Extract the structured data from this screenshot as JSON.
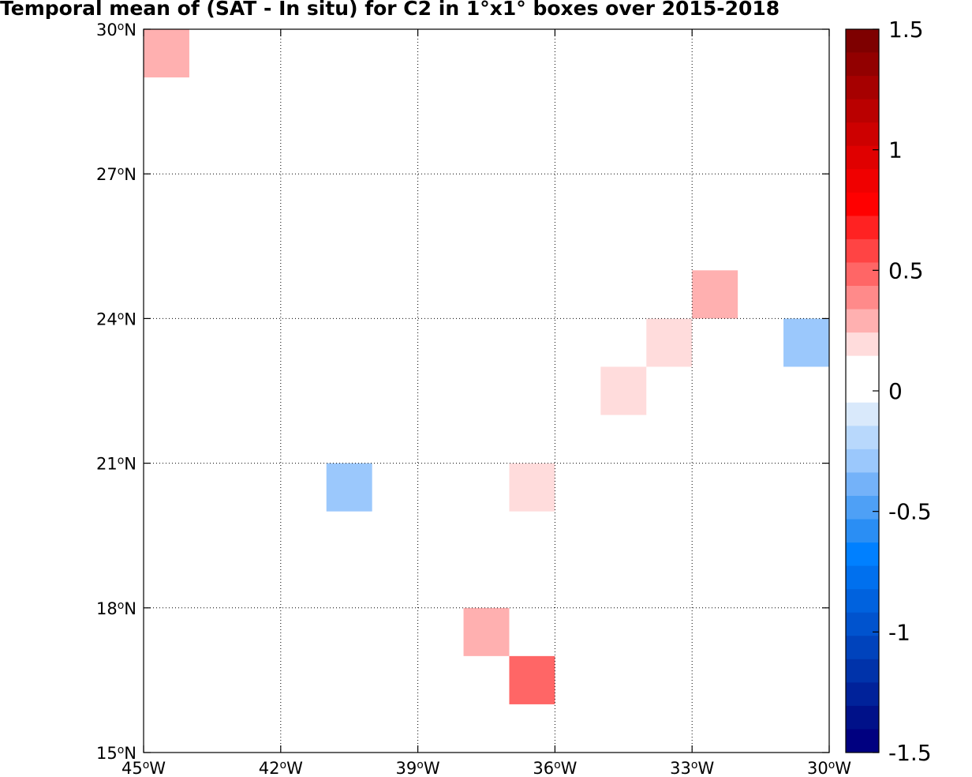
{
  "chart_data": {
    "type": "heatmap",
    "title": "Temporal mean of (SAT - In situ) for C2 in 1°x1° boxes over 2015-2018",
    "xlim": [
      -45,
      -30
    ],
    "ylim": [
      15,
      30
    ],
    "x_ticks": [
      {
        "value": -45,
        "deg": "45",
        "hemi": "W"
      },
      {
        "value": -42,
        "deg": "42",
        "hemi": "W"
      },
      {
        "value": -39,
        "deg": "39",
        "hemi": "W"
      },
      {
        "value": -36,
        "deg": "36",
        "hemi": "W"
      },
      {
        "value": -33,
        "deg": "33",
        "hemi": "W"
      },
      {
        "value": -30,
        "deg": "30",
        "hemi": "W"
      }
    ],
    "y_ticks": [
      {
        "value": 15,
        "deg": "15",
        "hemi": "N"
      },
      {
        "value": 18,
        "deg": "18",
        "hemi": "N"
      },
      {
        "value": 21,
        "deg": "21",
        "hemi": "N"
      },
      {
        "value": 24,
        "deg": "24",
        "hemi": "N"
      },
      {
        "value": 27,
        "deg": "27",
        "hemi": "N"
      },
      {
        "value": 30,
        "deg": "30",
        "hemi": "N"
      }
    ],
    "grid": true,
    "cells": [
      {
        "lon": -45,
        "lat": 29,
        "value": 0.3
      },
      {
        "lon": -33,
        "lat": 24,
        "value": 0.3
      },
      {
        "lon": -34,
        "lat": 23,
        "value": 0.2
      },
      {
        "lon": -35,
        "lat": 22,
        "value": 0.2
      },
      {
        "lon": -31,
        "lat": 23,
        "value": -0.25
      },
      {
        "lon": -41,
        "lat": 20,
        "value": -0.25
      },
      {
        "lon": -37,
        "lat": 20,
        "value": 0.2
      },
      {
        "lon": -38,
        "lat": 17,
        "value": 0.3
      },
      {
        "lon": -37,
        "lat": 16,
        "value": 0.45
      }
    ],
    "colorbar": {
      "min": -1.5,
      "max": 1.5,
      "ticks": [
        "1.5",
        "1",
        "0.5",
        "0",
        "-0.5",
        "-1",
        "-1.5"
      ],
      "tick_values": [
        1.5,
        1,
        0.5,
        0,
        -0.5,
        -1,
        -1.5
      ],
      "colors_top_to_bottom": [
        "#7e0000",
        "#920000",
        "#a60000",
        "#ba0000",
        "#cd0000",
        "#e00000",
        "#f00000",
        "#ff0000",
        "#ff2222",
        "#ff4444",
        "#ff6666",
        "#ff8a8a",
        "#ffb0b0",
        "#ffdcdc",
        "#ffffff",
        "#ffffff",
        "#d9e9fb",
        "#b8d8fc",
        "#9bc8fc",
        "#74b2f9",
        "#4ea0f6",
        "#2a8ef4",
        "#0080ff",
        "#0070ee",
        "#0062de",
        "#0053ce",
        "#0043bc",
        "#0033aa",
        "#00229a",
        "#001189",
        "#000080"
      ]
    }
  }
}
